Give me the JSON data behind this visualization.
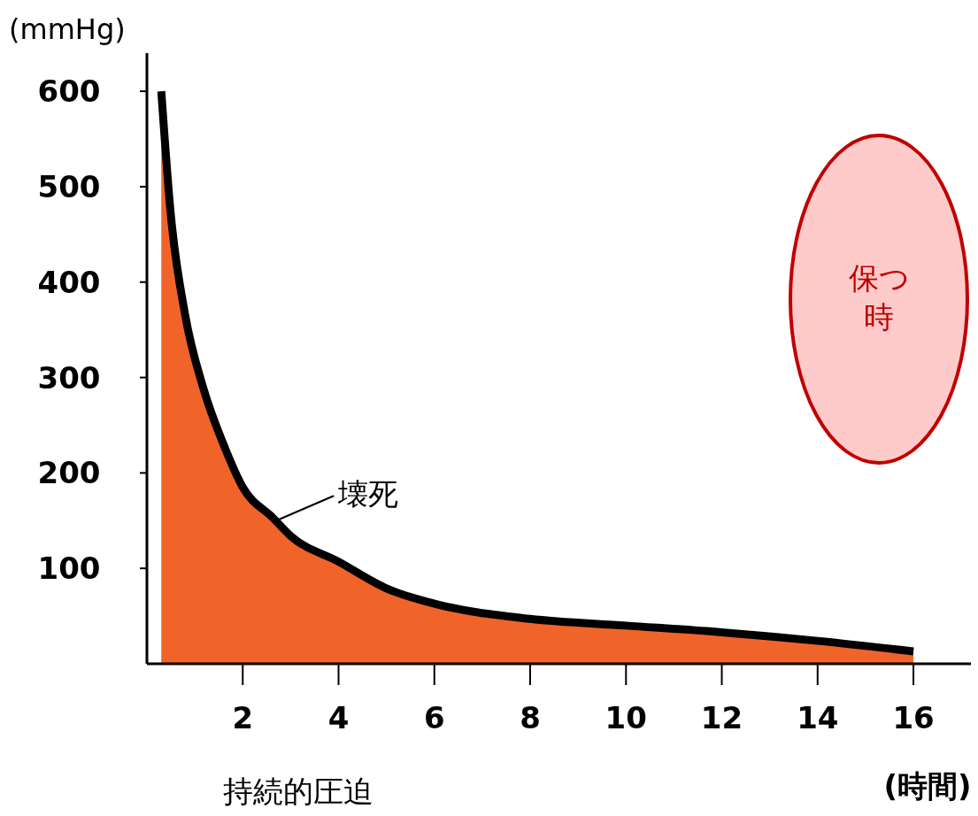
{
  "chart_data": {
    "type": "area",
    "ylabel": "(mmHg)",
    "xlabel": "(時間)",
    "x": [
      0.3,
      0.5,
      0.8,
      1.17,
      1.63,
      2,
      2.63,
      3,
      4,
      5,
      6,
      8,
      10,
      12,
      14,
      16
    ],
    "series": [
      {
        "color": "#f0642a",
        "values": [
          600,
          470,
          365,
          290,
          226,
          185,
          153,
          134,
          107,
          79,
          63,
          47,
          40,
          33,
          24,
          13
        ]
      }
    ],
    "xlim": [
      0,
      17.2
    ],
    "ylim": [
      0,
      640
    ],
    "xticks": [
      2,
      4,
      6,
      8,
      10,
      12,
      14,
      16
    ],
    "yticks": [
      100,
      200,
      300,
      400,
      500,
      600
    ],
    "annotations": [
      {
        "text": "壊死",
        "x": 2.7,
        "y": 150
      },
      "持続的圧迫",
      "保つ",
      "時"
    ]
  }
}
